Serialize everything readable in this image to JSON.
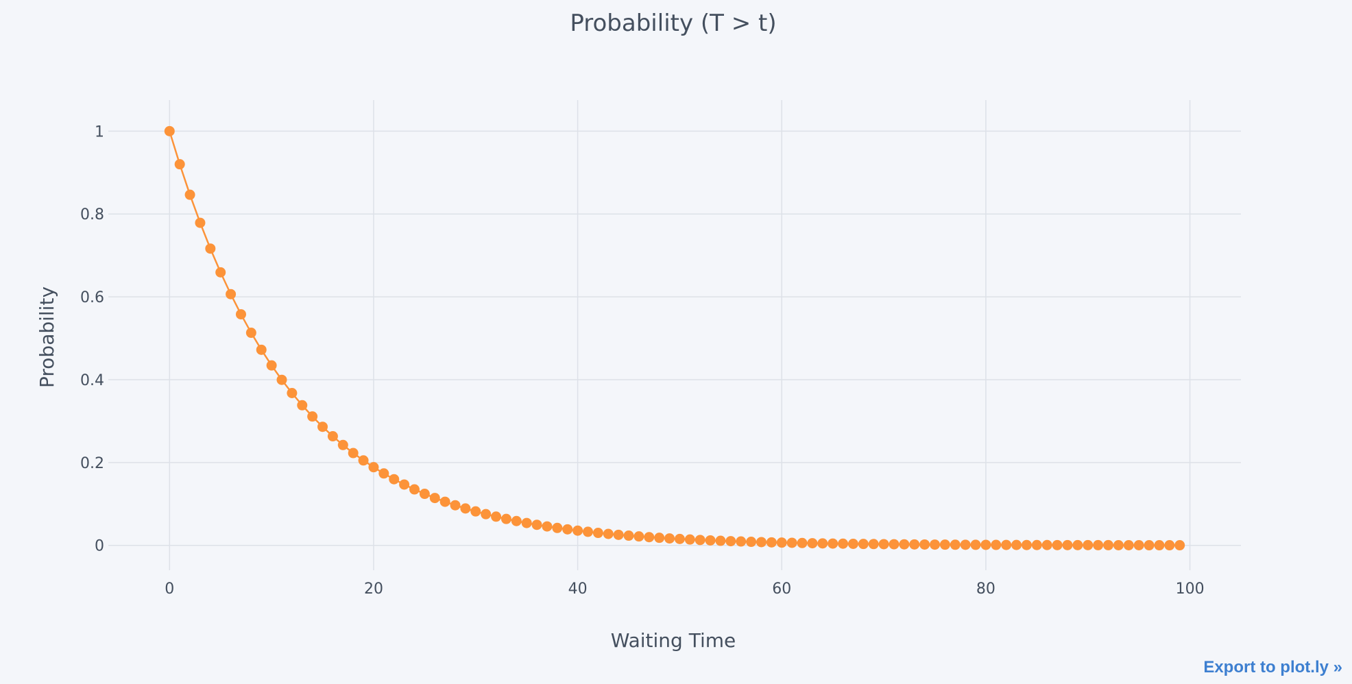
{
  "colors": {
    "background": "#f4f6fa",
    "series": "#fc9339",
    "grid": "#dde1e8",
    "text": "#444f5e",
    "link": "#3d7fd0"
  },
  "export_link": {
    "label": "Export to plot.ly »"
  },
  "chart_data": {
    "type": "line",
    "title": "Probability (T > t)",
    "xlabel": "Waiting Time",
    "ylabel": "Probability",
    "xlim": [
      -6,
      105
    ],
    "ylim": [
      -0.06,
      1.075
    ],
    "x_ticks": [
      0,
      20,
      40,
      60,
      80,
      100
    ],
    "y_ticks": [
      0,
      0.2,
      0.4,
      0.6,
      0.8,
      1
    ],
    "y_tick_labels": [
      "0",
      "0.2",
      "0.4",
      "0.6",
      "0.8",
      "1"
    ],
    "grid": true,
    "mode": "lines+markers",
    "legend": "none",
    "series": [
      {
        "x": [
          0,
          1,
          2,
          3,
          4,
          5,
          6,
          7,
          8,
          9,
          10,
          11,
          12,
          13,
          14,
          15,
          16,
          17,
          18,
          19,
          20,
          21,
          22,
          23,
          24,
          25,
          26,
          27,
          28,
          29,
          30,
          31,
          32,
          33,
          34,
          35,
          36,
          37,
          38,
          39,
          40,
          41,
          42,
          43,
          44,
          45,
          46,
          47,
          48,
          49,
          50,
          51,
          52,
          53,
          54,
          55,
          56,
          57,
          58,
          59,
          60,
          61,
          62,
          63,
          64,
          65,
          66,
          67,
          68,
          69,
          70,
          71,
          72,
          73,
          74,
          75,
          76,
          77,
          78,
          79,
          80,
          81,
          82,
          83,
          84,
          85,
          86,
          87,
          88,
          89,
          90,
          91,
          92,
          93,
          94,
          95,
          96,
          97,
          98,
          99
        ],
        "y": [
          1.0,
          0.92,
          0.8464,
          0.7787,
          0.7164,
          0.6591,
          0.6064,
          0.5578,
          0.5132,
          0.4722,
          0.4344,
          0.3996,
          0.3677,
          0.3383,
          0.3112,
          0.2863,
          0.2634,
          0.2423,
          0.2229,
          0.2051,
          0.1887,
          0.1736,
          0.1597,
          0.1469,
          0.1352,
          0.1244,
          0.1144,
          0.1053,
          0.0968,
          0.0891,
          0.082,
          0.0754,
          0.0694,
          0.0638,
          0.0587,
          0.054,
          0.0497,
          0.0457,
          0.0421,
          0.0387,
          0.0356,
          0.0328,
          0.0301,
          0.0277,
          0.0255,
          0.0235,
          0.0216,
          0.0199,
          0.0183,
          0.0168,
          0.0155,
          0.0142,
          0.0131,
          0.012,
          0.0111,
          0.0102,
          0.0094,
          0.0086,
          0.0079,
          0.0073,
          0.0067,
          0.0062,
          0.0057,
          0.0052,
          0.0048,
          0.0044,
          0.0041,
          0.0037,
          0.0034,
          0.0032,
          0.0029,
          0.0027,
          0.0025,
          0.0023,
          0.0021,
          0.0019,
          0.0018,
          0.0016,
          0.0015,
          0.0014,
          0.0013,
          0.0012,
          0.0011,
          0.001,
          0.0009,
          0.0008,
          0.0008,
          0.0007,
          0.0007,
          0.0006,
          0.0006,
          0.0005,
          0.0005,
          0.0004,
          0.0004,
          0.0004,
          0.0003,
          0.0003,
          0.0003,
          0.0003
        ]
      }
    ]
  }
}
